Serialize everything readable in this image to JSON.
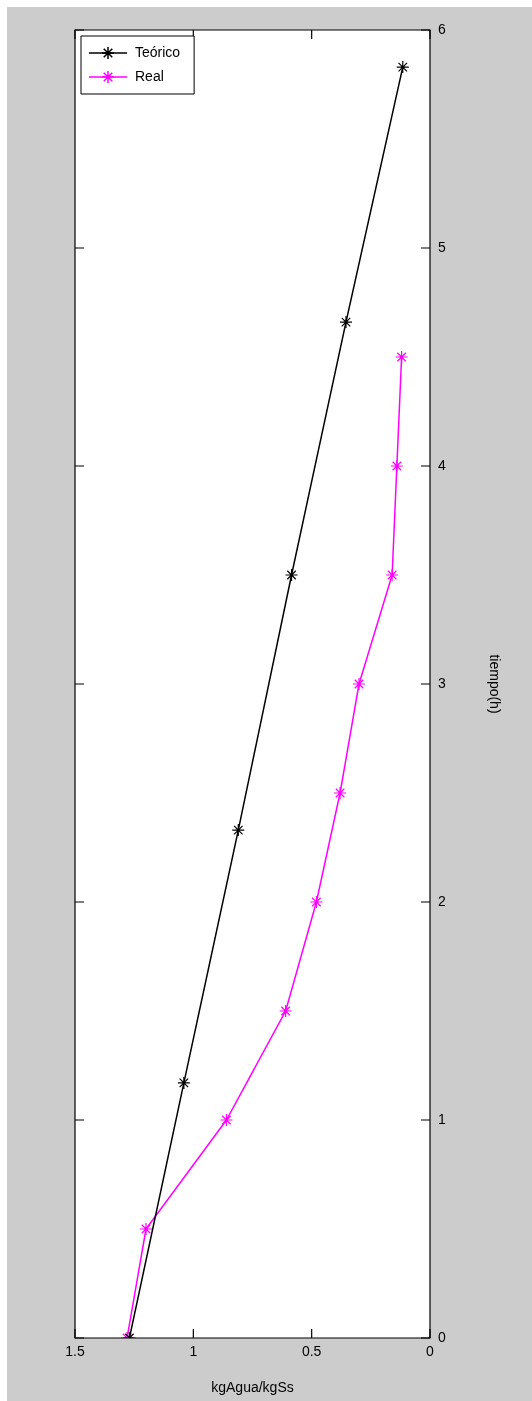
{
  "chart_data": {
    "type": "line",
    "xlabel": "kgAgua/kgSs",
    "ylabel": "tiempo(h)",
    "xlim": [
      1.5,
      0
    ],
    "xticks": [
      1.5,
      1,
      0.5,
      0
    ],
    "ylim": [
      0,
      6
    ],
    "yticks": [
      0,
      1,
      2,
      3,
      4,
      5,
      6
    ],
    "grid": false,
    "legend": "top left",
    "marker": "cross",
    "line_style": "solid",
    "series": [
      {
        "name": "Teórico",
        "color": "#000000",
        "x": [
          1.27,
          1.04,
          0.81,
          0.585,
          0.355,
          0.115
        ],
        "values": [
          0,
          1.17,
          2.33,
          3.5,
          4.66,
          5.83
        ]
      },
      {
        "name": "Real",
        "color": "#ff00ff",
        "x": [
          1.28,
          1.2,
          0.86,
          0.61,
          0.48,
          0.38,
          0.3,
          0.16,
          0.14,
          0.12
        ],
        "values": [
          0,
          0.5,
          1,
          1.5,
          2,
          2.5,
          3,
          3.5,
          4,
          4.5
        ]
      }
    ]
  }
}
